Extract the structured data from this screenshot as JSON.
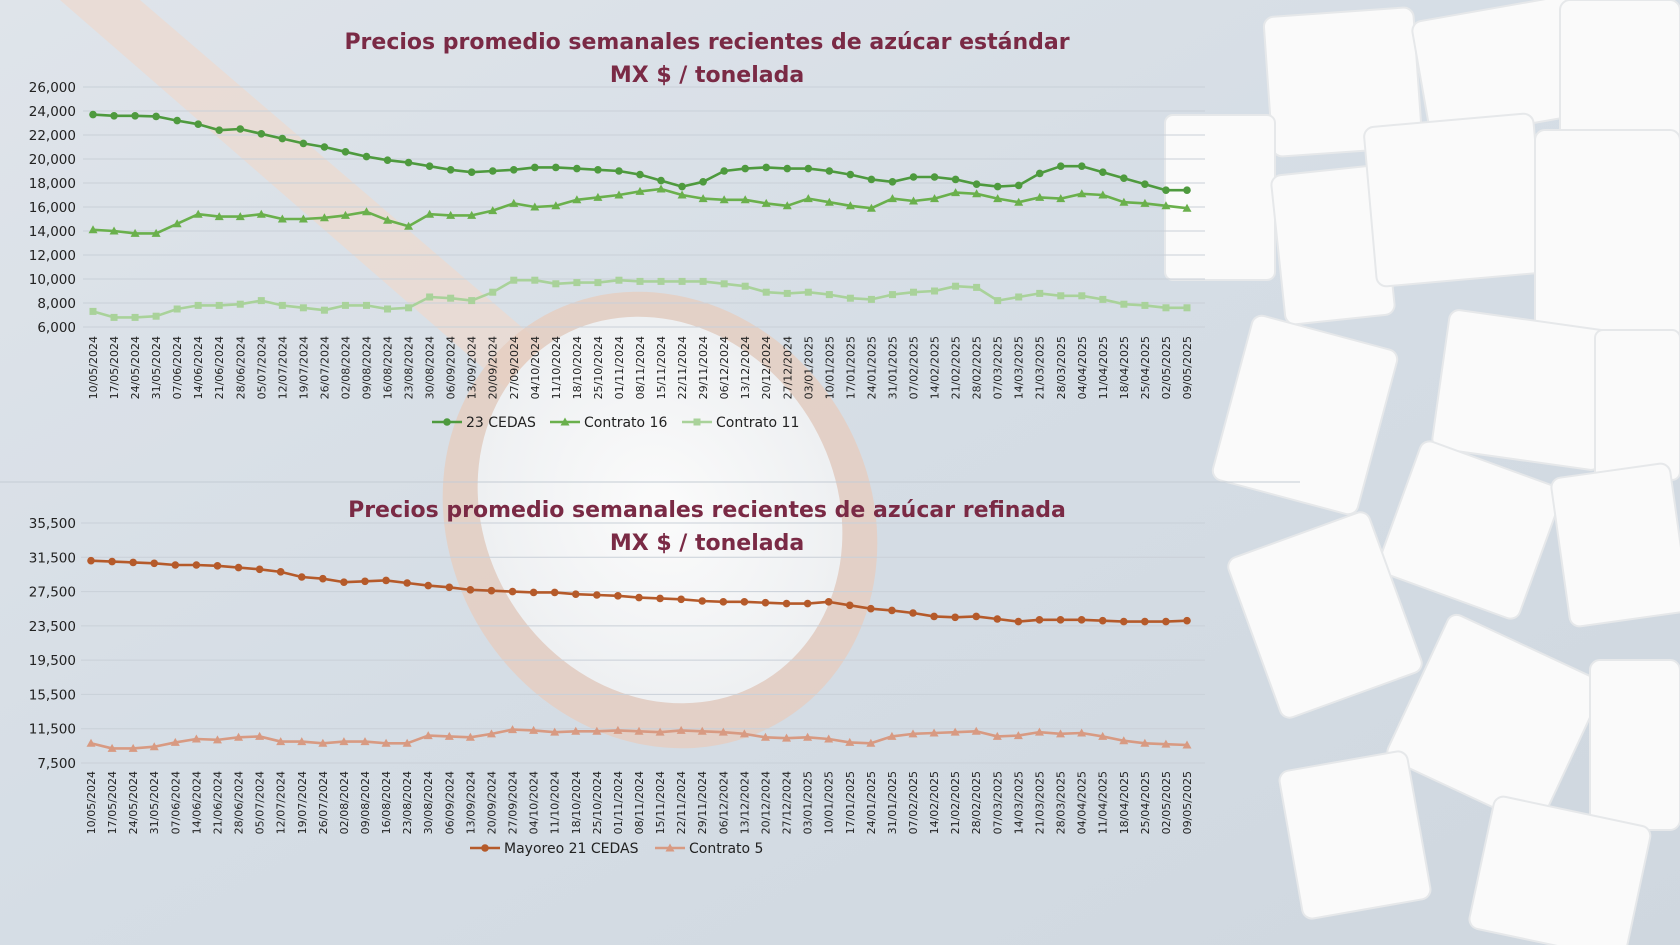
{
  "colors": {
    "title": "#7a2a45",
    "cedas23": "#4e9a3e",
    "contrato16": "#6ab04c",
    "contrato11": "#a9d29a",
    "mayoreo21": "#b55a2a",
    "contrato5": "#d89a82"
  },
  "chart_data": [
    {
      "type": "line",
      "title": "Precios promedio semanales recientes de azúcar estándar",
      "subtitle": "MX $ / tonelada",
      "ylim": [
        6000,
        26000
      ],
      "yticks": [
        "6,000",
        "8,000",
        "10,000",
        "12,000",
        "14,000",
        "16,000",
        "18,000",
        "20,000",
        "22,000",
        "24,000",
        "26,000"
      ],
      "ytick_values": [
        6000,
        8000,
        10000,
        12000,
        14000,
        16000,
        18000,
        20000,
        22000,
        24000,
        26000
      ],
      "grid": true,
      "legend_position": "bottom",
      "categories": [
        "10/05/2024",
        "17/05/2024",
        "24/05/2024",
        "31/05/2024",
        "07/06/2024",
        "14/06/2024",
        "21/06/2024",
        "28/06/2024",
        "05/07/2024",
        "12/07/2024",
        "19/07/2024",
        "26/07/2024",
        "02/08/2024",
        "09/08/2024",
        "16/08/2024",
        "23/08/2024",
        "30/08/2024",
        "06/09/2024",
        "13/09/2024",
        "20/09/2024",
        "27/09/2024",
        "04/10/2024",
        "11/10/2024",
        "18/10/2024",
        "25/10/2024",
        "01/11/2024",
        "08/11/2024",
        "15/11/2024",
        "22/11/2024",
        "29/11/2024",
        "06/12/2024",
        "13/12/2024",
        "20/12/2024",
        "27/12/2024",
        "03/01/2025",
        "10/01/2025",
        "17/01/2025",
        "24/01/2025",
        "31/01/2025",
        "07/02/2025",
        "14/02/2025",
        "21/02/2025",
        "28/02/2025",
        "07/03/2025",
        "14/03/2025",
        "21/03/2025",
        "28/03/2025",
        "04/04/2025",
        "11/04/2025",
        "18/04/2025",
        "25/04/2025",
        "02/05/2025",
        "09/05/2025"
      ],
      "series": [
        {
          "name": "23 CEDAS",
          "marker": "circle",
          "color_key": "cedas23",
          "values": [
            23700,
            23600,
            23600,
            23550,
            23200,
            22900,
            22400,
            22500,
            22100,
            21700,
            21300,
            21000,
            20600,
            20200,
            19900,
            19700,
            19400,
            19100,
            18900,
            19000,
            19100,
            19300,
            19300,
            19200,
            19100,
            19000,
            18700,
            18200,
            17700,
            18100,
            19000,
            19200,
            19300,
            19200,
            19200,
            19000,
            18700,
            18300,
            18100,
            18500,
            18500,
            18300,
            17900,
            17700,
            17800,
            18800,
            19400,
            19400,
            18900,
            18400,
            17900,
            17400,
            17400
          ]
        },
        {
          "name": "Contrato 16",
          "marker": "triangle",
          "color_key": "contrato16",
          "values": [
            14100,
            14000,
            13800,
            13800,
            14600,
            15400,
            15200,
            15200,
            15400,
            15000,
            15000,
            15100,
            15300,
            15600,
            14900,
            14400,
            15400,
            15300,
            15300,
            15700,
            16300,
            16000,
            16100,
            16600,
            16800,
            17000,
            17300,
            17500,
            17000,
            16700,
            16600,
            16600,
            16300,
            16100,
            16700,
            16400,
            16100,
            15900,
            16700,
            16500,
            16700,
            17200,
            17100,
            16700,
            16400,
            16800,
            16700,
            17100,
            17000,
            16400,
            16300,
            16100,
            15900
          ]
        },
        {
          "name": "Contrato 11",
          "marker": "square",
          "color_key": "contrato11",
          "values": [
            7300,
            6800,
            6800,
            6900,
            7500,
            7800,
            7800,
            7900,
            8200,
            7800,
            7600,
            7400,
            7800,
            7800,
            7500,
            7600,
            8500,
            8400,
            8200,
            8900,
            9900,
            9900,
            9600,
            9700,
            9700,
            9900,
            9800,
            9800,
            9800,
            9800,
            9600,
            9400,
            8900,
            8800,
            8900,
            8700,
            8400,
            8300,
            8700,
            8900,
            9000,
            9400,
            9300,
            8200,
            8500,
            8800,
            8600,
            8600,
            8300,
            7900,
            7800,
            7600,
            7600
          ]
        }
      ]
    },
    {
      "type": "line",
      "title": "Precios promedio semanales recientes de azúcar refinada",
      "subtitle": "MX $ / tonelada",
      "ylim": [
        7500,
        35500
      ],
      "yticks": [
        "7,500",
        "11,500",
        "15,500",
        "19,500",
        "23,500",
        "27,500",
        "31,500",
        "35,500"
      ],
      "ytick_values": [
        7500,
        11500,
        15500,
        19500,
        23500,
        27500,
        31500,
        35500
      ],
      "grid": true,
      "legend_position": "bottom",
      "categories": [
        "10/05/2024",
        "17/05/2024",
        "24/05/2024",
        "31/05/2024",
        "07/06/2024",
        "14/06/2024",
        "21/06/2024",
        "28/06/2024",
        "05/07/2024",
        "12/07/2024",
        "19/07/2024",
        "26/07/2024",
        "02/08/2024",
        "09/08/2024",
        "16/08/2024",
        "23/08/2024",
        "30/08/2024",
        "06/09/2024",
        "13/09/2024",
        "20/09/2024",
        "27/09/2024",
        "04/10/2024",
        "11/10/2024",
        "18/10/2024",
        "25/10/2024",
        "01/11/2024",
        "08/11/2024",
        "15/11/2024",
        "22/11/2024",
        "29/11/2024",
        "06/12/2024",
        "13/12/2024",
        "20/12/2024",
        "27/12/2024",
        "03/01/2025",
        "10/01/2025",
        "17/01/2025",
        "24/01/2025",
        "31/01/2025",
        "07/02/2025",
        "14/02/2025",
        "21/02/2025",
        "28/02/2025",
        "07/03/2025",
        "14/03/2025",
        "21/03/2025",
        "28/03/2025",
        "04/04/2025",
        "11/04/2025",
        "18/04/2025",
        "25/04/2025",
        "02/05/2025",
        "09/05/2025"
      ],
      "series": [
        {
          "name": "Mayoreo 21 CEDAS",
          "marker": "circle",
          "color_key": "mayoreo21",
          "values": [
            31100,
            31000,
            30900,
            30800,
            30600,
            30600,
            30500,
            30300,
            30100,
            29800,
            29200,
            29000,
            28600,
            28700,
            28800,
            28500,
            28200,
            28000,
            27700,
            27600,
            27500,
            27400,
            27400,
            27200,
            27100,
            27000,
            26800,
            26700,
            26600,
            26400,
            26300,
            26300,
            26200,
            26100,
            26100,
            26300,
            25900,
            25500,
            25300,
            25000,
            24600,
            24500,
            24600,
            24300,
            24000,
            24200,
            24200,
            24200,
            24100,
            24000,
            24000,
            24000,
            24100
          ]
        },
        {
          "name": "Contrato 5",
          "marker": "triangle",
          "color_key": "contrato5",
          "values": [
            9800,
            9200,
            9200,
            9400,
            9900,
            10300,
            10200,
            10500,
            10600,
            10000,
            10000,
            9800,
            10000,
            10000,
            9800,
            9800,
            10700,
            10600,
            10500,
            10900,
            11400,
            11300,
            11100,
            11200,
            11200,
            11300,
            11200,
            11100,
            11300,
            11200,
            11100,
            10900,
            10500,
            10400,
            10500,
            10300,
            9900,
            9800,
            10600,
            10900,
            11000,
            11100,
            11200,
            10600,
            10700,
            11100,
            10900,
            11000,
            10600,
            10100,
            9800,
            9700,
            9600
          ]
        }
      ]
    }
  ]
}
